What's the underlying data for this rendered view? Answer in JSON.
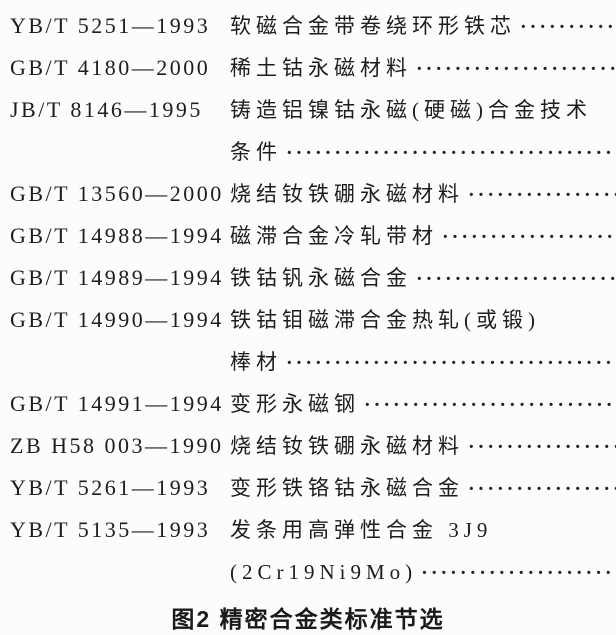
{
  "page": {
    "background_color": "#fcfcfb",
    "text_color": "#1d1d1d"
  },
  "standards_list": {
    "rows": [
      {
        "code": "YB/T 5251—1993",
        "title": "软磁合金带卷绕环形铁芯",
        "dots": true
      },
      {
        "code": "GB/T 4180—2000",
        "title": "稀土钴永磁材料",
        "dots": true
      },
      {
        "code": "JB/T 8146—1995",
        "title": "铸造铝镍钴永磁(硬磁)合金技术",
        "dots": false
      },
      {
        "code": "",
        "title": "条件",
        "dots": true
      },
      {
        "code": "GB/T 13560—2000",
        "title": "烧结钕铁硼永磁材料",
        "dots": true
      },
      {
        "code": "GB/T 14988—1994",
        "title": "磁滞合金冷轧带材",
        "dots": true
      },
      {
        "code": "GB/T 14989—1994",
        "title": "铁钴钒永磁合金",
        "dots": true
      },
      {
        "code": "GB/T 14990—1994",
        "title": "铁钴钼磁滞合金热轧(或锻)",
        "dots": false
      },
      {
        "code": "",
        "title": "棒材",
        "dots": true
      },
      {
        "code": "GB/T 14991—1994",
        "title": "变形永磁钢",
        "dots": true
      },
      {
        "code": "ZB H58 003—1990",
        "title": "烧结钕铁硼永磁材料",
        "dots": true
      },
      {
        "code": "YB/T 5261—1993",
        "title": "变形铁铬钴永磁合金",
        "dots": true
      },
      {
        "code": "YB/T 5135—1993",
        "title": "发条用高弹性合金 3J9",
        "dots": false
      },
      {
        "code": "",
        "title": "(2Cr19Ni9Mo)",
        "dots": true
      }
    ],
    "dot_leader": {
      "char": "·",
      "repeat": 80
    }
  },
  "figure": {
    "caption": "图2 精密合金类标准节选"
  }
}
